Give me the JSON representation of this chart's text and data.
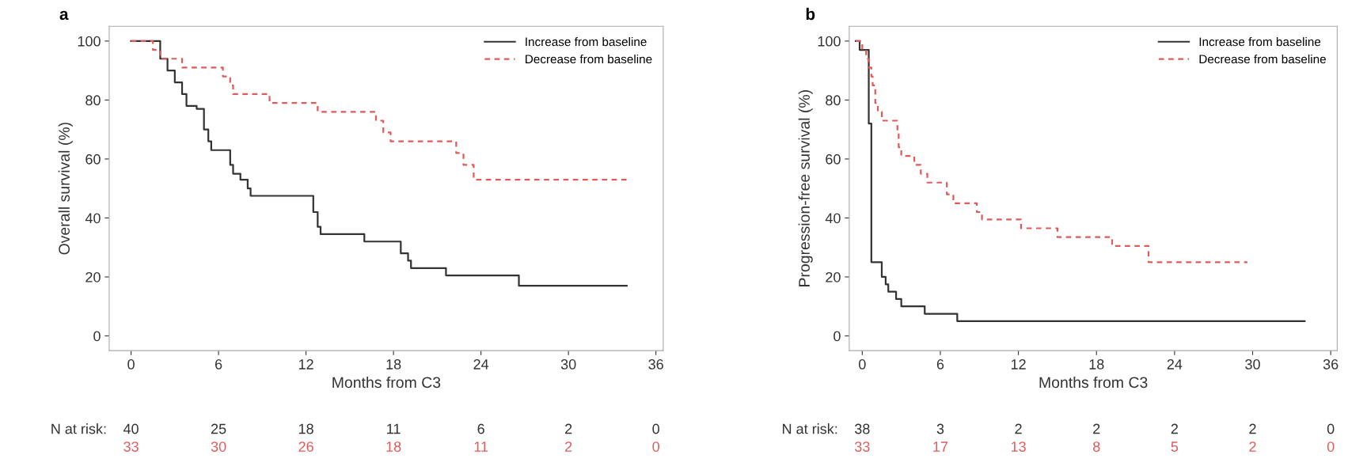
{
  "chart_data": [
    {
      "type": "step",
      "title": "a",
      "xlabel": "Months from C3",
      "ylabel": "Overall survival (%)",
      "xlim": [
        -1.5,
        36.5
      ],
      "xticks": [
        0,
        6,
        12,
        18,
        24,
        30,
        36
      ],
      "ylim": [
        -5,
        105
      ],
      "yticks": [
        0,
        20,
        40,
        60,
        80,
        100
      ],
      "grid": false,
      "legend": "top right",
      "marker": "none",
      "series": [
        {
          "name": "Increase from baseline",
          "color": "#333333",
          "line_style": "solid",
          "x": [
            0,
            1.8,
            2,
            2.5,
            3,
            3.5,
            3.8,
            4.5,
            5,
            5.3,
            5.5,
            6.8,
            7,
            7.5,
            8,
            8.2,
            12.5,
            12.8,
            13,
            16,
            18.5,
            19,
            19.2,
            21.6,
            26.6,
            34
          ],
          "values": [
            100,
            100,
            94,
            90,
            86,
            82,
            78,
            77,
            70,
            66,
            63,
            58,
            55,
            53,
            50,
            47.5,
            42,
            37,
            34.5,
            32,
            28,
            25.5,
            23,
            20.5,
            17,
            17
          ]
        },
        {
          "name": "Decrease from baseline",
          "color": "#e05a5a",
          "line_style": "dashed",
          "x": [
            0,
            1.5,
            2,
            3.5,
            6.3,
            6.8,
            7,
            9.5,
            12.8,
            16.8,
            17.3,
            17.8,
            22.3,
            22.8,
            23.5,
            34
          ],
          "values": [
            100,
            97,
            94,
            91,
            88,
            85,
            82,
            79,
            76,
            73,
            69,
            66,
            62,
            58,
            53,
            53
          ]
        }
      ],
      "annotations": [
        "N at risk:",
        "40",
        "25",
        "18",
        "11",
        "6",
        "2",
        "0",
        "33",
        "30",
        "26",
        "18",
        "11",
        "2",
        "0"
      ]
    },
    {
      "type": "step",
      "title": "b",
      "xlabel": "Months from C3",
      "ylabel": "Progression-free survival (%)",
      "xlim": [
        -1,
        36.5
      ],
      "xticks": [
        0,
        6,
        12,
        18,
        24,
        30,
        36
      ],
      "ylim": [
        -5,
        105
      ],
      "yticks": [
        0,
        20,
        40,
        60,
        80,
        100
      ],
      "grid": false,
      "legend": "top right",
      "marker": "none",
      "series": [
        {
          "name": "Increase from baseline",
          "color": "#333333",
          "line_style": "solid",
          "x": [
            -0.5,
            -0.2,
            0.5,
            0.7,
            1.5,
            1.8,
            2,
            2.6,
            3,
            4.8,
            7.3,
            34
          ],
          "values": [
            100,
            97,
            72,
            25,
            20,
            17.5,
            15,
            12.5,
            10,
            7.5,
            5,
            5
          ]
        },
        {
          "name": "Decrease from baseline",
          "color": "#e05a5a",
          "line_style": "dashed",
          "x": [
            -0.5,
            0,
            0.3,
            0.5,
            0.7,
            0.8,
            1,
            1.2,
            1.5,
            2.7,
            2.8,
            3,
            4,
            4.5,
            5,
            6.5,
            7,
            8.8,
            9.2,
            12.2,
            15,
            19.2,
            22,
            29.6
          ],
          "values": [
            100,
            97,
            94,
            91,
            88,
            85,
            79,
            76,
            73,
            70,
            64,
            61,
            58,
            55,
            52,
            48,
            45,
            42,
            39.5,
            36.5,
            33.5,
            30.5,
            25,
            25
          ]
        }
      ],
      "annotations": [
        "N at risk:",
        "38",
        "3",
        "2",
        "2",
        "2",
        "2",
        "0",
        "33",
        "17",
        "13",
        "8",
        "5",
        "2",
        "0"
      ]
    }
  ]
}
